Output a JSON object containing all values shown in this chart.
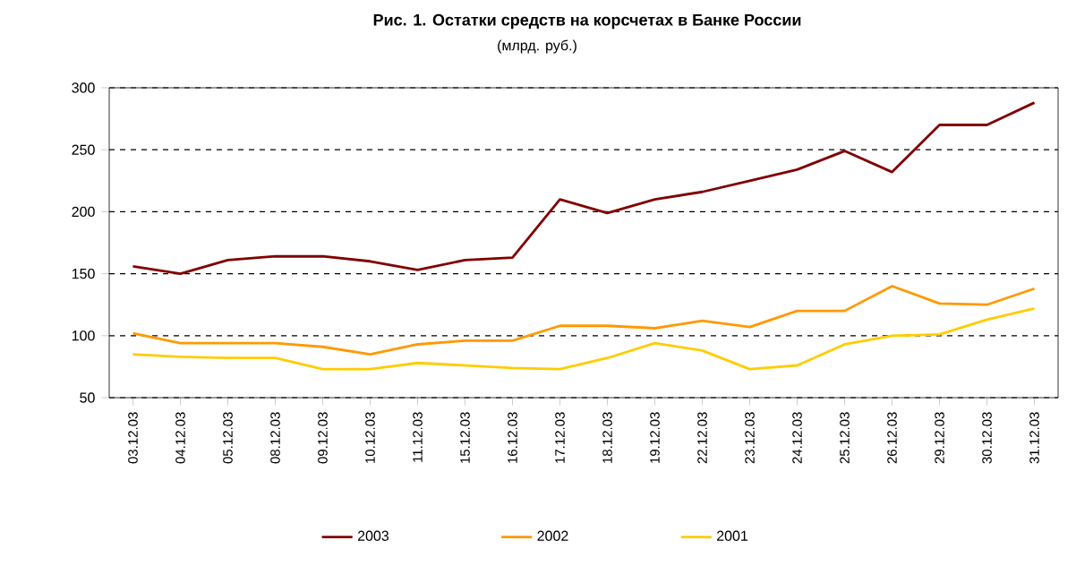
{
  "chart_data": {
    "type": "line",
    "title": "Рис. 1. Остатки средств на корсчетах в Банке России",
    "subtitle": "(млрд. руб.)",
    "categories": [
      "03.12.03",
      "04.12.03",
      "05.12.03",
      "08.12.03",
      "09.12.03",
      "10.12.03",
      "11.12.03",
      "15.12.03",
      "16.12.03",
      "17.12.03",
      "18.12.03",
      "19.12.03",
      "22.12.03",
      "23.12.03",
      "24.12.03",
      "25.12.03",
      "26.12.03",
      "29.12.03",
      "30.12.03",
      "31.12.03"
    ],
    "series": [
      {
        "name": "2003",
        "color": "#800000",
        "values": [
          156,
          150,
          161,
          164,
          164,
          160,
          153,
          161,
          163,
          210,
          199,
          210,
          216,
          225,
          234,
          249,
          232,
          270,
          270,
          288
        ]
      },
      {
        "name": "2002",
        "color": "#ff9900",
        "values": [
          102,
          94,
          94,
          94,
          91,
          85,
          93,
          96,
          96,
          108,
          108,
          106,
          112,
          107,
          120,
          120,
          140,
          126,
          125,
          138
        ]
      },
      {
        "name": "2001",
        "color": "#ffcc00",
        "values": [
          85,
          83,
          82,
          82,
          73,
          73,
          78,
          76,
          74,
          73,
          82,
          94,
          88,
          73,
          76,
          93,
          100,
          101,
          113,
          122
        ]
      }
    ],
    "ylim": [
      50,
      300
    ],
    "yticks": [
      50,
      100,
      150,
      200,
      250,
      300
    ],
    "grid": "y",
    "legend": "bottom",
    "marker": "none",
    "line_style": "solid"
  }
}
